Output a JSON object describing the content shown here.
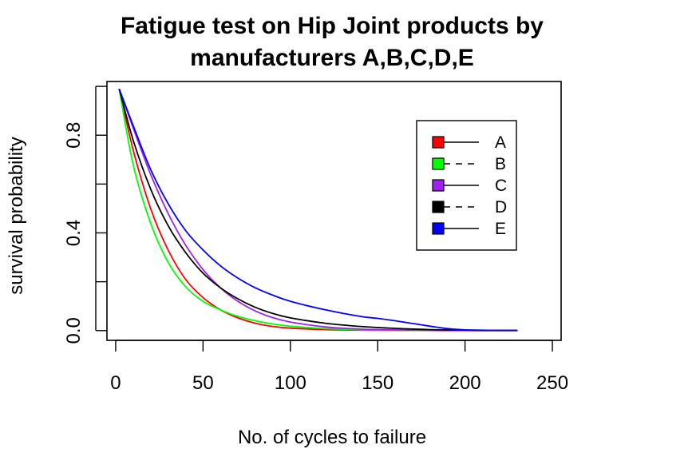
{
  "chart_data": {
    "type": "line",
    "title": [
      "Fatigue test on Hip Joint products by",
      "manufacturers A,B,C,D,E"
    ],
    "xlabel": "No. of cycles to failure",
    "ylabel": "survival probability",
    "xlim": [
      -5,
      255
    ],
    "ylim": [
      -0.04,
      1.02
    ],
    "x_ticks": [
      0,
      50,
      100,
      150,
      200,
      250
    ],
    "y_ticks": [
      0.0,
      0.2,
      0.4,
      0.6,
      0.8,
      1.0
    ],
    "y_tick_labels": [
      {
        "value": 0.0,
        "label": "0.0"
      },
      {
        "value": 0.4,
        "label": "0.4"
      },
      {
        "value": 0.8,
        "label": "0.8"
      }
    ],
    "grid": false,
    "legend_position": "top-right",
    "series": [
      {
        "name": "A",
        "color": "#FF0000",
        "legend_line": "solid",
        "x": [
          2,
          10,
          20,
          30,
          40,
          50,
          60,
          70,
          80,
          90,
          100,
          120,
          140,
          160,
          180,
          200,
          215,
          230
        ],
        "y": [
          0.99,
          0.74,
          0.5,
          0.33,
          0.21,
          0.135,
          0.085,
          0.052,
          0.03,
          0.017,
          0.01,
          0.004,
          0.002,
          0.001,
          0.0005,
          0.0002,
          0.0001,
          0.0001
        ]
      },
      {
        "name": "B",
        "color": "#00FF00",
        "legend_line": "dashed",
        "x": [
          2,
          10,
          20,
          30,
          40,
          50,
          60,
          70,
          80,
          90,
          100,
          120,
          140,
          160,
          180,
          200,
          215,
          230
        ],
        "y": [
          0.99,
          0.68,
          0.44,
          0.28,
          0.18,
          0.12,
          0.085,
          0.058,
          0.04,
          0.027,
          0.018,
          0.008,
          0.004,
          0.002,
          0.001,
          0.0005,
          0.0002,
          0.0001
        ]
      },
      {
        "name": "C",
        "color": "#A020F0",
        "legend_line": "solid",
        "x": [
          2,
          10,
          20,
          30,
          40,
          50,
          60,
          70,
          80,
          90,
          100,
          120,
          140,
          160,
          180,
          200,
          215,
          230
        ],
        "y": [
          0.99,
          0.83,
          0.64,
          0.48,
          0.35,
          0.25,
          0.175,
          0.12,
          0.08,
          0.053,
          0.035,
          0.015,
          0.006,
          0.003,
          0.001,
          0.0005,
          0.0002,
          0.0001
        ]
      },
      {
        "name": "D",
        "color": "#000000",
        "legend_line": "dashed",
        "x": [
          2,
          10,
          20,
          30,
          40,
          50,
          60,
          70,
          80,
          90,
          100,
          120,
          140,
          160,
          180,
          200,
          215,
          230
        ],
        "y": [
          0.99,
          0.78,
          0.58,
          0.43,
          0.32,
          0.235,
          0.175,
          0.13,
          0.095,
          0.07,
          0.052,
          0.03,
          0.017,
          0.009,
          0.004,
          0.002,
          0.001,
          0.0005
        ]
      },
      {
        "name": "E",
        "color": "#0000FF",
        "legend_line": "solid",
        "x": [
          2,
          10,
          20,
          30,
          40,
          50,
          60,
          70,
          80,
          90,
          100,
          120,
          140,
          150,
          160,
          180,
          190,
          200,
          215,
          230
        ],
        "y": [
          0.99,
          0.84,
          0.66,
          0.52,
          0.41,
          0.33,
          0.265,
          0.215,
          0.175,
          0.145,
          0.12,
          0.085,
          0.058,
          0.05,
          0.04,
          0.018,
          0.008,
          0.003,
          0.001,
          0.0005
        ]
      }
    ]
  }
}
